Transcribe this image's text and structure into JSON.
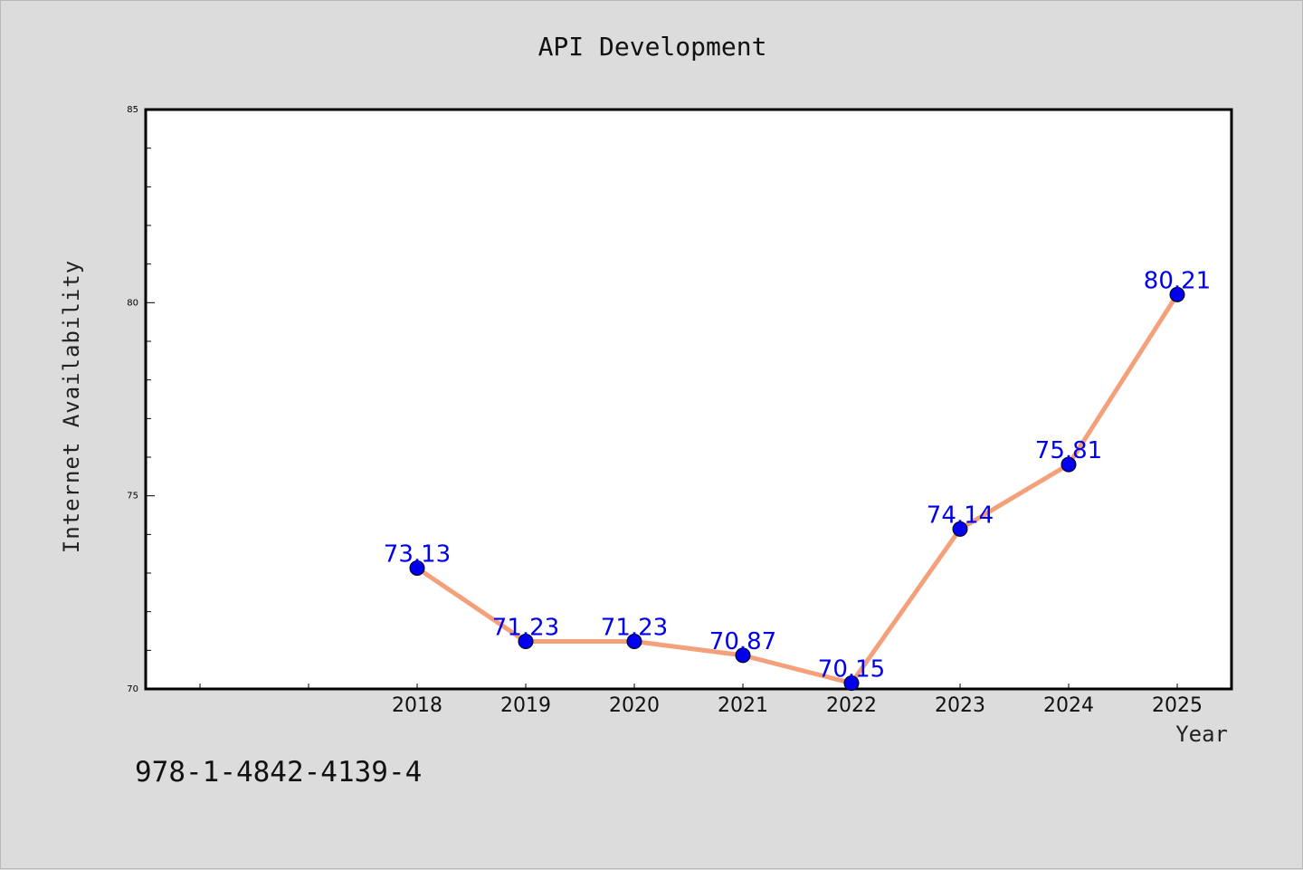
{
  "chart_data": {
    "type": "line",
    "title": "API Development",
    "xlabel": "Year",
    "ylabel": "Internet Availability",
    "x": [
      "2018",
      "2019",
      "2020",
      "2021",
      "2022",
      "2023",
      "2024",
      "2025"
    ],
    "series": [
      {
        "values": [
          73.13,
          71.23,
          71.23,
          70.87,
          70.15,
          74.14,
          75.81,
          80.21
        ]
      }
    ],
    "data_labels": [
      "73.13",
      "71.23",
      "71.23",
      "70.87",
      "70.15",
      "74.14",
      "75.81",
      "80.21"
    ],
    "ylim": [
      70,
      85
    ],
    "y_ticks": [
      "70",
      "75",
      "80",
      "85"
    ],
    "grid": false,
    "line_color": "#f4a07a",
    "marker_color": "#0000ee",
    "label_color": "#0000ee"
  },
  "annotation": "978-1-4842-4139-4"
}
